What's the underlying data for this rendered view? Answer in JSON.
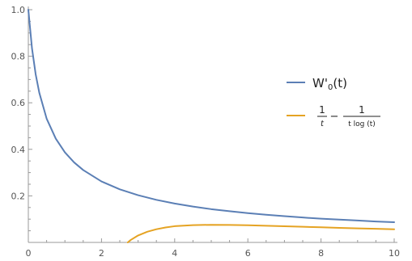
{
  "chart_data": {
    "type": "line",
    "title": "",
    "xlabel": "",
    "ylabel": "",
    "xlim": [
      0,
      10
    ],
    "ylim": [
      0,
      1.0
    ],
    "x_ticks_major": [
      0,
      2,
      4,
      6,
      8,
      10
    ],
    "x_tick_labels": [
      "0",
      "2",
      "4",
      "6",
      "8",
      "10"
    ],
    "y_ticks_major": [
      0.2,
      0.4,
      0.6,
      0.8,
      1.0
    ],
    "y_tick_labels": [
      "0.2",
      "0.4",
      "0.6",
      "0.8",
      "1.0"
    ],
    "grid": false,
    "legend_position": "right",
    "series": [
      {
        "name": "W'0(t)",
        "legend": {
          "main": "W'",
          "sub": "0",
          "tail": "(t)"
        },
        "color": "#5b7fb5",
        "x": [
          0,
          0.1,
          0.2,
          0.3,
          0.5,
          0.75,
          1,
          1.25,
          1.5,
          2,
          2.5,
          3,
          3.5,
          4,
          4.5,
          5,
          5.5,
          6,
          6.5,
          7,
          7.5,
          8,
          8.5,
          9,
          9.5,
          10
        ],
        "y": [
          1.0,
          0.834,
          0.723,
          0.643,
          0.532,
          0.446,
          0.387,
          0.344,
          0.311,
          0.262,
          0.228,
          0.203,
          0.183,
          0.167,
          0.154,
          0.143,
          0.134,
          0.126,
          0.119,
          0.113,
          0.107,
          0.102,
          0.098,
          0.094,
          0.09,
          0.087
        ]
      },
      {
        "name": "1/t - 1/(t log(t))",
        "legend": {
          "num1": "1",
          "den1": "t",
          "op": "−",
          "num2": "1",
          "den2": "t log (t)"
        },
        "color": "#e5a323",
        "x": [
          2.718,
          2.8,
          3,
          3.25,
          3.5,
          3.75,
          4,
          4.5,
          5,
          5.5,
          6,
          6.5,
          7,
          7.5,
          8,
          8.5,
          9,
          9.5,
          10
        ],
        "y": [
          0.0,
          0.0106,
          0.0299,
          0.0457,
          0.0567,
          0.0642,
          0.0697,
          0.0744,
          0.0757,
          0.0752,
          0.0737,
          0.0718,
          0.0695,
          0.0671,
          0.0649,
          0.0626,
          0.0605,
          0.0585,
          0.0566
        ]
      }
    ]
  }
}
